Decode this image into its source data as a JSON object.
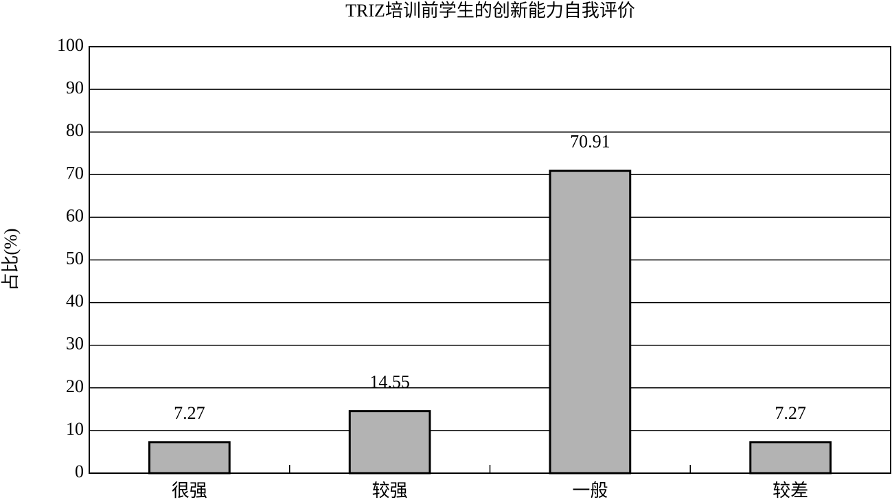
{
  "chart_data": {
    "type": "bar",
    "title": "TRIZ培训前学生的创新能力自我评价",
    "y_label": "占比(%)",
    "categories": [
      "很强",
      "较强",
      "一般",
      "较差"
    ],
    "values": [
      7.27,
      14.55,
      70.91,
      7.27
    ],
    "color": "#b3b3b3",
    "ylim": [
      0,
      100
    ],
    "yticks": [
      0,
      10,
      20,
      30,
      40,
      50,
      60,
      70,
      80,
      90,
      100
    ],
    "grid": true
  }
}
